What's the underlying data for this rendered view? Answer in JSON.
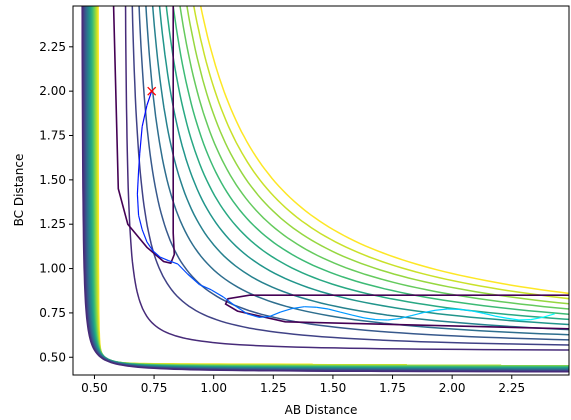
{
  "chart_data": {
    "type": "contour",
    "xlabel": "AB Distance",
    "ylabel": "BC Distance",
    "xlim": [
      0.41,
      2.49
    ],
    "ylim": [
      0.4,
      2.48
    ],
    "x_ticks": [
      "0.50",
      "0.75",
      "1.00",
      "1.25",
      "1.50",
      "1.75",
      "2.00",
      "2.25"
    ],
    "y_ticks": [
      "0.50",
      "0.75",
      "1.00",
      "1.25",
      "1.50",
      "1.75",
      "2.00",
      "2.25"
    ],
    "colormap": [
      "#440154",
      "#482878",
      "#3e4989",
      "#31688e",
      "#26828e",
      "#1f9e89",
      "#35b779",
      "#6ece58",
      "#b5de2b",
      "#fde725"
    ],
    "start_marker": {
      "x": 0.74,
      "y": 2.0,
      "symbol": "x",
      "color": "#ff0000"
    },
    "trajectory": {
      "color_start": "#0000ff",
      "color_end": "#00ffff",
      "points": [
        [
          0.74,
          2.0
        ],
        [
          0.72,
          1.92
        ],
        [
          0.7,
          1.8
        ],
        [
          0.69,
          1.65
        ],
        [
          0.685,
          1.55
        ],
        [
          0.68,
          1.42
        ],
        [
          0.685,
          1.3
        ],
        [
          0.7,
          1.22
        ],
        [
          0.72,
          1.15
        ],
        [
          0.745,
          1.1
        ],
        [
          0.775,
          1.065
        ],
        [
          0.81,
          1.045
        ],
        [
          0.85,
          1.025
        ],
        [
          0.89,
          0.97
        ],
        [
          0.94,
          0.91
        ],
        [
          0.99,
          0.88
        ],
        [
          1.04,
          0.84
        ],
        [
          1.09,
          0.79
        ],
        [
          1.14,
          0.745
        ],
        [
          1.19,
          0.725
        ],
        [
          1.235,
          0.73
        ],
        [
          1.28,
          0.755
        ],
        [
          1.33,
          0.775
        ],
        [
          1.38,
          0.785
        ],
        [
          1.43,
          0.782
        ],
        [
          1.48,
          0.772
        ],
        [
          1.53,
          0.755
        ],
        [
          1.58,
          0.738
        ],
        [
          1.63,
          0.722
        ],
        [
          1.68,
          0.712
        ],
        [
          1.73,
          0.71
        ],
        [
          1.78,
          0.718
        ],
        [
          1.83,
          0.735
        ],
        [
          1.88,
          0.752
        ],
        [
          1.93,
          0.765
        ],
        [
          1.98,
          0.772
        ],
        [
          2.03,
          0.77
        ],
        [
          2.08,
          0.762
        ],
        [
          2.13,
          0.748
        ],
        [
          2.18,
          0.732
        ],
        [
          2.23,
          0.72
        ],
        [
          2.28,
          0.71
        ],
        [
          2.33,
          0.712
        ],
        [
          2.38,
          0.725
        ],
        [
          2.43,
          0.745
        ]
      ]
    }
  }
}
